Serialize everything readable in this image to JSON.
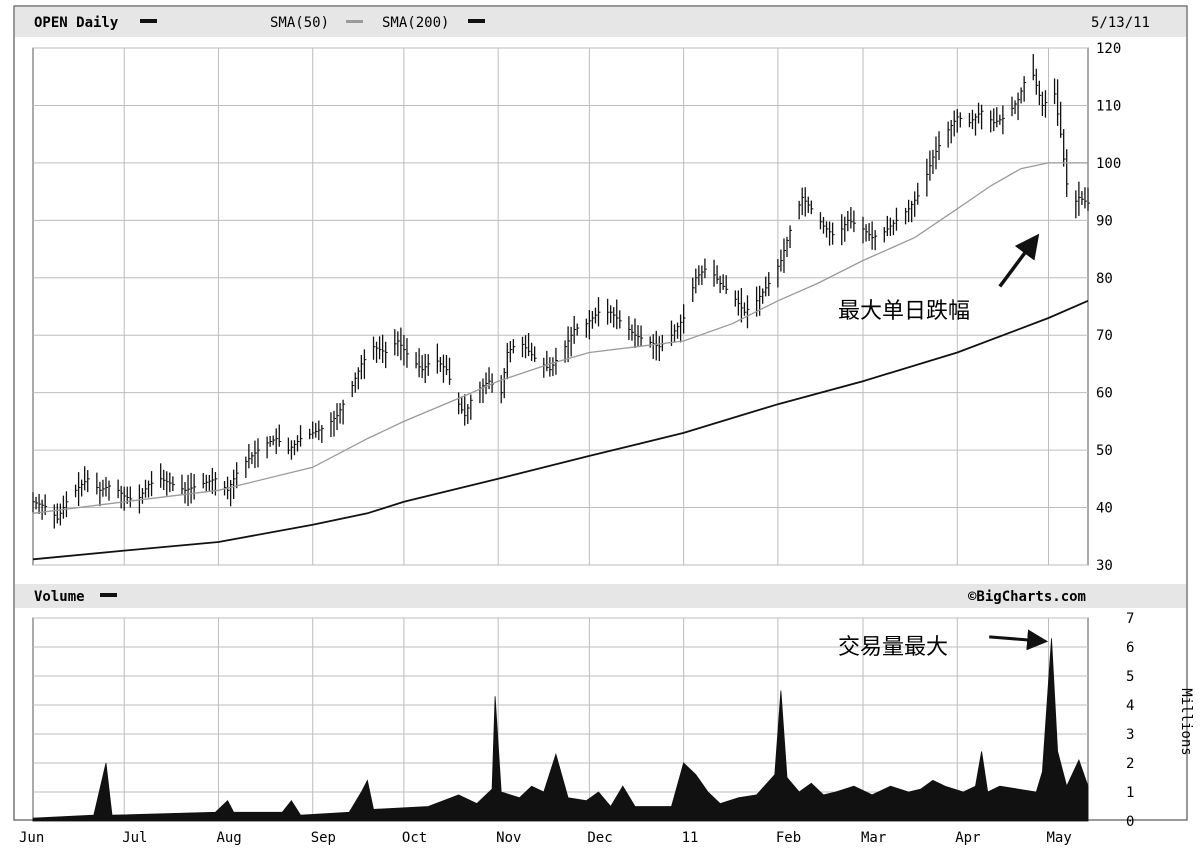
{
  "header": {
    "symbol_label": "OPEN Daily",
    "sma50_label": "SMA(50)",
    "sma200_label": "SMA(200)",
    "date_label": "5/13/11"
  },
  "volume_header": {
    "label": "Volume",
    "copyright": "©BigCharts.com"
  },
  "annotations": {
    "price_note": "最大单日跌幅",
    "volume_note": "交易量最大"
  },
  "colors": {
    "frame": "#555555",
    "grid": "#bdbdbd",
    "header_bg": "#e6e6e6",
    "bars": "#111111",
    "sma50": "#9a9a9a",
    "sma200": "#111111",
    "volume_fill": "#111111"
  },
  "chart_data": [
    {
      "type": "line",
      "ylim": [
        30,
        120
      ],
      "yticks": [
        "30",
        "40",
        "50",
        "60",
        "70",
        "80",
        "90",
        "100",
        "110",
        "120"
      ],
      "xticks": [
        "Jun",
        "Jul",
        "Aug",
        "Sep",
        "Oct",
        "Nov",
        "Dec",
        "11",
        "Feb",
        "Mar",
        "Apr",
        "May"
      ],
      "xtick_days": [
        0,
        30,
        61,
        92,
        122,
        153,
        183,
        214,
        245,
        273,
        304,
        334
      ],
      "x_last_day": 347,
      "price_path": [
        [
          0,
          41
        ],
        [
          5,
          40
        ],
        [
          8,
          38
        ],
        [
          12,
          42
        ],
        [
          18,
          45
        ],
        [
          22,
          43
        ],
        [
          26,
          44
        ],
        [
          30,
          42
        ],
        [
          34,
          41
        ],
        [
          38,
          44
        ],
        [
          42,
          45
        ],
        [
          46,
          44
        ],
        [
          50,
          43
        ],
        [
          55,
          44
        ],
        [
          60,
          45
        ],
        [
          64,
          43
        ],
        [
          68,
          47
        ],
        [
          72,
          49
        ],
        [
          76,
          51
        ],
        [
          80,
          52
        ],
        [
          84,
          50
        ],
        [
          88,
          52
        ],
        [
          92,
          53
        ],
        [
          96,
          54
        ],
        [
          100,
          56
        ],
        [
          104,
          60
        ],
        [
          108,
          65
        ],
        [
          112,
          68
        ],
        [
          116,
          67
        ],
        [
          120,
          69
        ],
        [
          124,
          66
        ],
        [
          128,
          64
        ],
        [
          132,
          66
        ],
        [
          136,
          64
        ],
        [
          139,
          59
        ],
        [
          142,
          56
        ],
        [
          145,
          60
        ],
        [
          150,
          62
        ],
        [
          154,
          60
        ],
        [
          156,
          67
        ],
        [
          160,
          69
        ],
        [
          165,
          66
        ],
        [
          170,
          64
        ],
        [
          175,
          68
        ],
        [
          178,
          71
        ],
        [
          182,
          72
        ],
        [
          186,
          74
        ],
        [
          190,
          74
        ],
        [
          194,
          72
        ],
        [
          198,
          70
        ],
        [
          202,
          69
        ],
        [
          206,
          68
        ],
        [
          210,
          70
        ],
        [
          214,
          73
        ],
        [
          218,
          80
        ],
        [
          222,
          82
        ],
        [
          226,
          79
        ],
        [
          230,
          77
        ],
        [
          234,
          74
        ],
        [
          238,
          76
        ],
        [
          242,
          79
        ],
        [
          246,
          83
        ],
        [
          250,
          90
        ],
        [
          253,
          94
        ],
        [
          256,
          92
        ],
        [
          260,
          89
        ],
        [
          264,
          87
        ],
        [
          268,
          90
        ],
        [
          272,
          89
        ],
        [
          276,
          87
        ],
        [
          280,
          88
        ],
        [
          284,
          90
        ],
        [
          288,
          92
        ],
        [
          292,
          95
        ],
        [
          296,
          101
        ],
        [
          300,
          105
        ],
        [
          304,
          108
        ],
        [
          308,
          107
        ],
        [
          312,
          109
        ],
        [
          316,
          107
        ],
        [
          320,
          108
        ],
        [
          324,
          111
        ],
        [
          328,
          117
        ],
        [
          332,
          110
        ],
        [
          336,
          112
        ],
        [
          338,
          105
        ],
        [
          341,
          92
        ],
        [
          344,
          94
        ],
        [
          347,
          93
        ]
      ],
      "sma50_path": [
        [
          0,
          39
        ],
        [
          30,
          41
        ],
        [
          61,
          43
        ],
        [
          92,
          47
        ],
        [
          110,
          52
        ],
        [
          122,
          55
        ],
        [
          140,
          59
        ],
        [
          153,
          62
        ],
        [
          170,
          65
        ],
        [
          183,
          67
        ],
        [
          214,
          69
        ],
        [
          230,
          72
        ],
        [
          245,
          76
        ],
        [
          258,
          79
        ],
        [
          273,
          83
        ],
        [
          290,
          87
        ],
        [
          304,
          92
        ],
        [
          315,
          96
        ],
        [
          325,
          99
        ],
        [
          334,
          100
        ],
        [
          347,
          100
        ]
      ],
      "sma200_path": [
        [
          0,
          31
        ],
        [
          30,
          32.5
        ],
        [
          61,
          34
        ],
        [
          92,
          37
        ],
        [
          110,
          39
        ],
        [
          122,
          41
        ],
        [
          153,
          45
        ],
        [
          183,
          49
        ],
        [
          214,
          53
        ],
        [
          245,
          58
        ],
        [
          273,
          62
        ],
        [
          304,
          67
        ],
        [
          334,
          73
        ],
        [
          347,
          76
        ]
      ],
      "price_note_arrow": {
        "from": [
          318,
          78.5
        ],
        "to": [
          330,
          87
        ]
      }
    },
    {
      "type": "area",
      "ylabel": "Millions",
      "ylim": [
        0,
        7
      ],
      "yticks": [
        "0",
        "1",
        "2",
        "3",
        "4",
        "5",
        "6",
        "7"
      ],
      "volume_path": [
        [
          0,
          0.1
        ],
        [
          20,
          0.2
        ],
        [
          24,
          2.0
        ],
        [
          26,
          0.2
        ],
        [
          60,
          0.3
        ],
        [
          64,
          0.7
        ],
        [
          66,
          0.3
        ],
        [
          82,
          0.3
        ],
        [
          85,
          0.7
        ],
        [
          88,
          0.2
        ],
        [
          104,
          0.3
        ],
        [
          108,
          1.0
        ],
        [
          110,
          1.4
        ],
        [
          112,
          0.4
        ],
        [
          130,
          0.5
        ],
        [
          140,
          0.9
        ],
        [
          146,
          0.6
        ],
        [
          151,
          1.1
        ],
        [
          152,
          4.3
        ],
        [
          154,
          1.0
        ],
        [
          160,
          0.8
        ],
        [
          164,
          1.2
        ],
        [
          168,
          1.0
        ],
        [
          172,
          2.3
        ],
        [
          176,
          0.8
        ],
        [
          182,
          0.7
        ],
        [
          186,
          1.0
        ],
        [
          190,
          0.5
        ],
        [
          194,
          1.2
        ],
        [
          198,
          0.5
        ],
        [
          210,
          0.5
        ],
        [
          214,
          2.0
        ],
        [
          218,
          1.6
        ],
        [
          222,
          1.0
        ],
        [
          226,
          0.6
        ],
        [
          232,
          0.8
        ],
        [
          238,
          0.9
        ],
        [
          244,
          1.6
        ],
        [
          246,
          4.5
        ],
        [
          248,
          1.5
        ],
        [
          252,
          1.0
        ],
        [
          256,
          1.3
        ],
        [
          260,
          0.9
        ],
        [
          264,
          1.0
        ],
        [
          270,
          1.2
        ],
        [
          276,
          0.9
        ],
        [
          282,
          1.2
        ],
        [
          288,
          1.0
        ],
        [
          292,
          1.1
        ],
        [
          296,
          1.4
        ],
        [
          300,
          1.2
        ],
        [
          306,
          1.0
        ],
        [
          310,
          1.2
        ],
        [
          312,
          2.4
        ],
        [
          314,
          1.0
        ],
        [
          318,
          1.2
        ],
        [
          324,
          1.1
        ],
        [
          330,
          1.0
        ],
        [
          332,
          1.7
        ],
        [
          335,
          6.3
        ],
        [
          337,
          2.4
        ],
        [
          340,
          1.2
        ],
        [
          344,
          2.1
        ],
        [
          347,
          1.2
        ]
      ],
      "volume_note_arrow": {
        "from": [
          314.5,
          6.35
        ],
        "to": [
          332.5,
          6.2
        ]
      }
    }
  ]
}
